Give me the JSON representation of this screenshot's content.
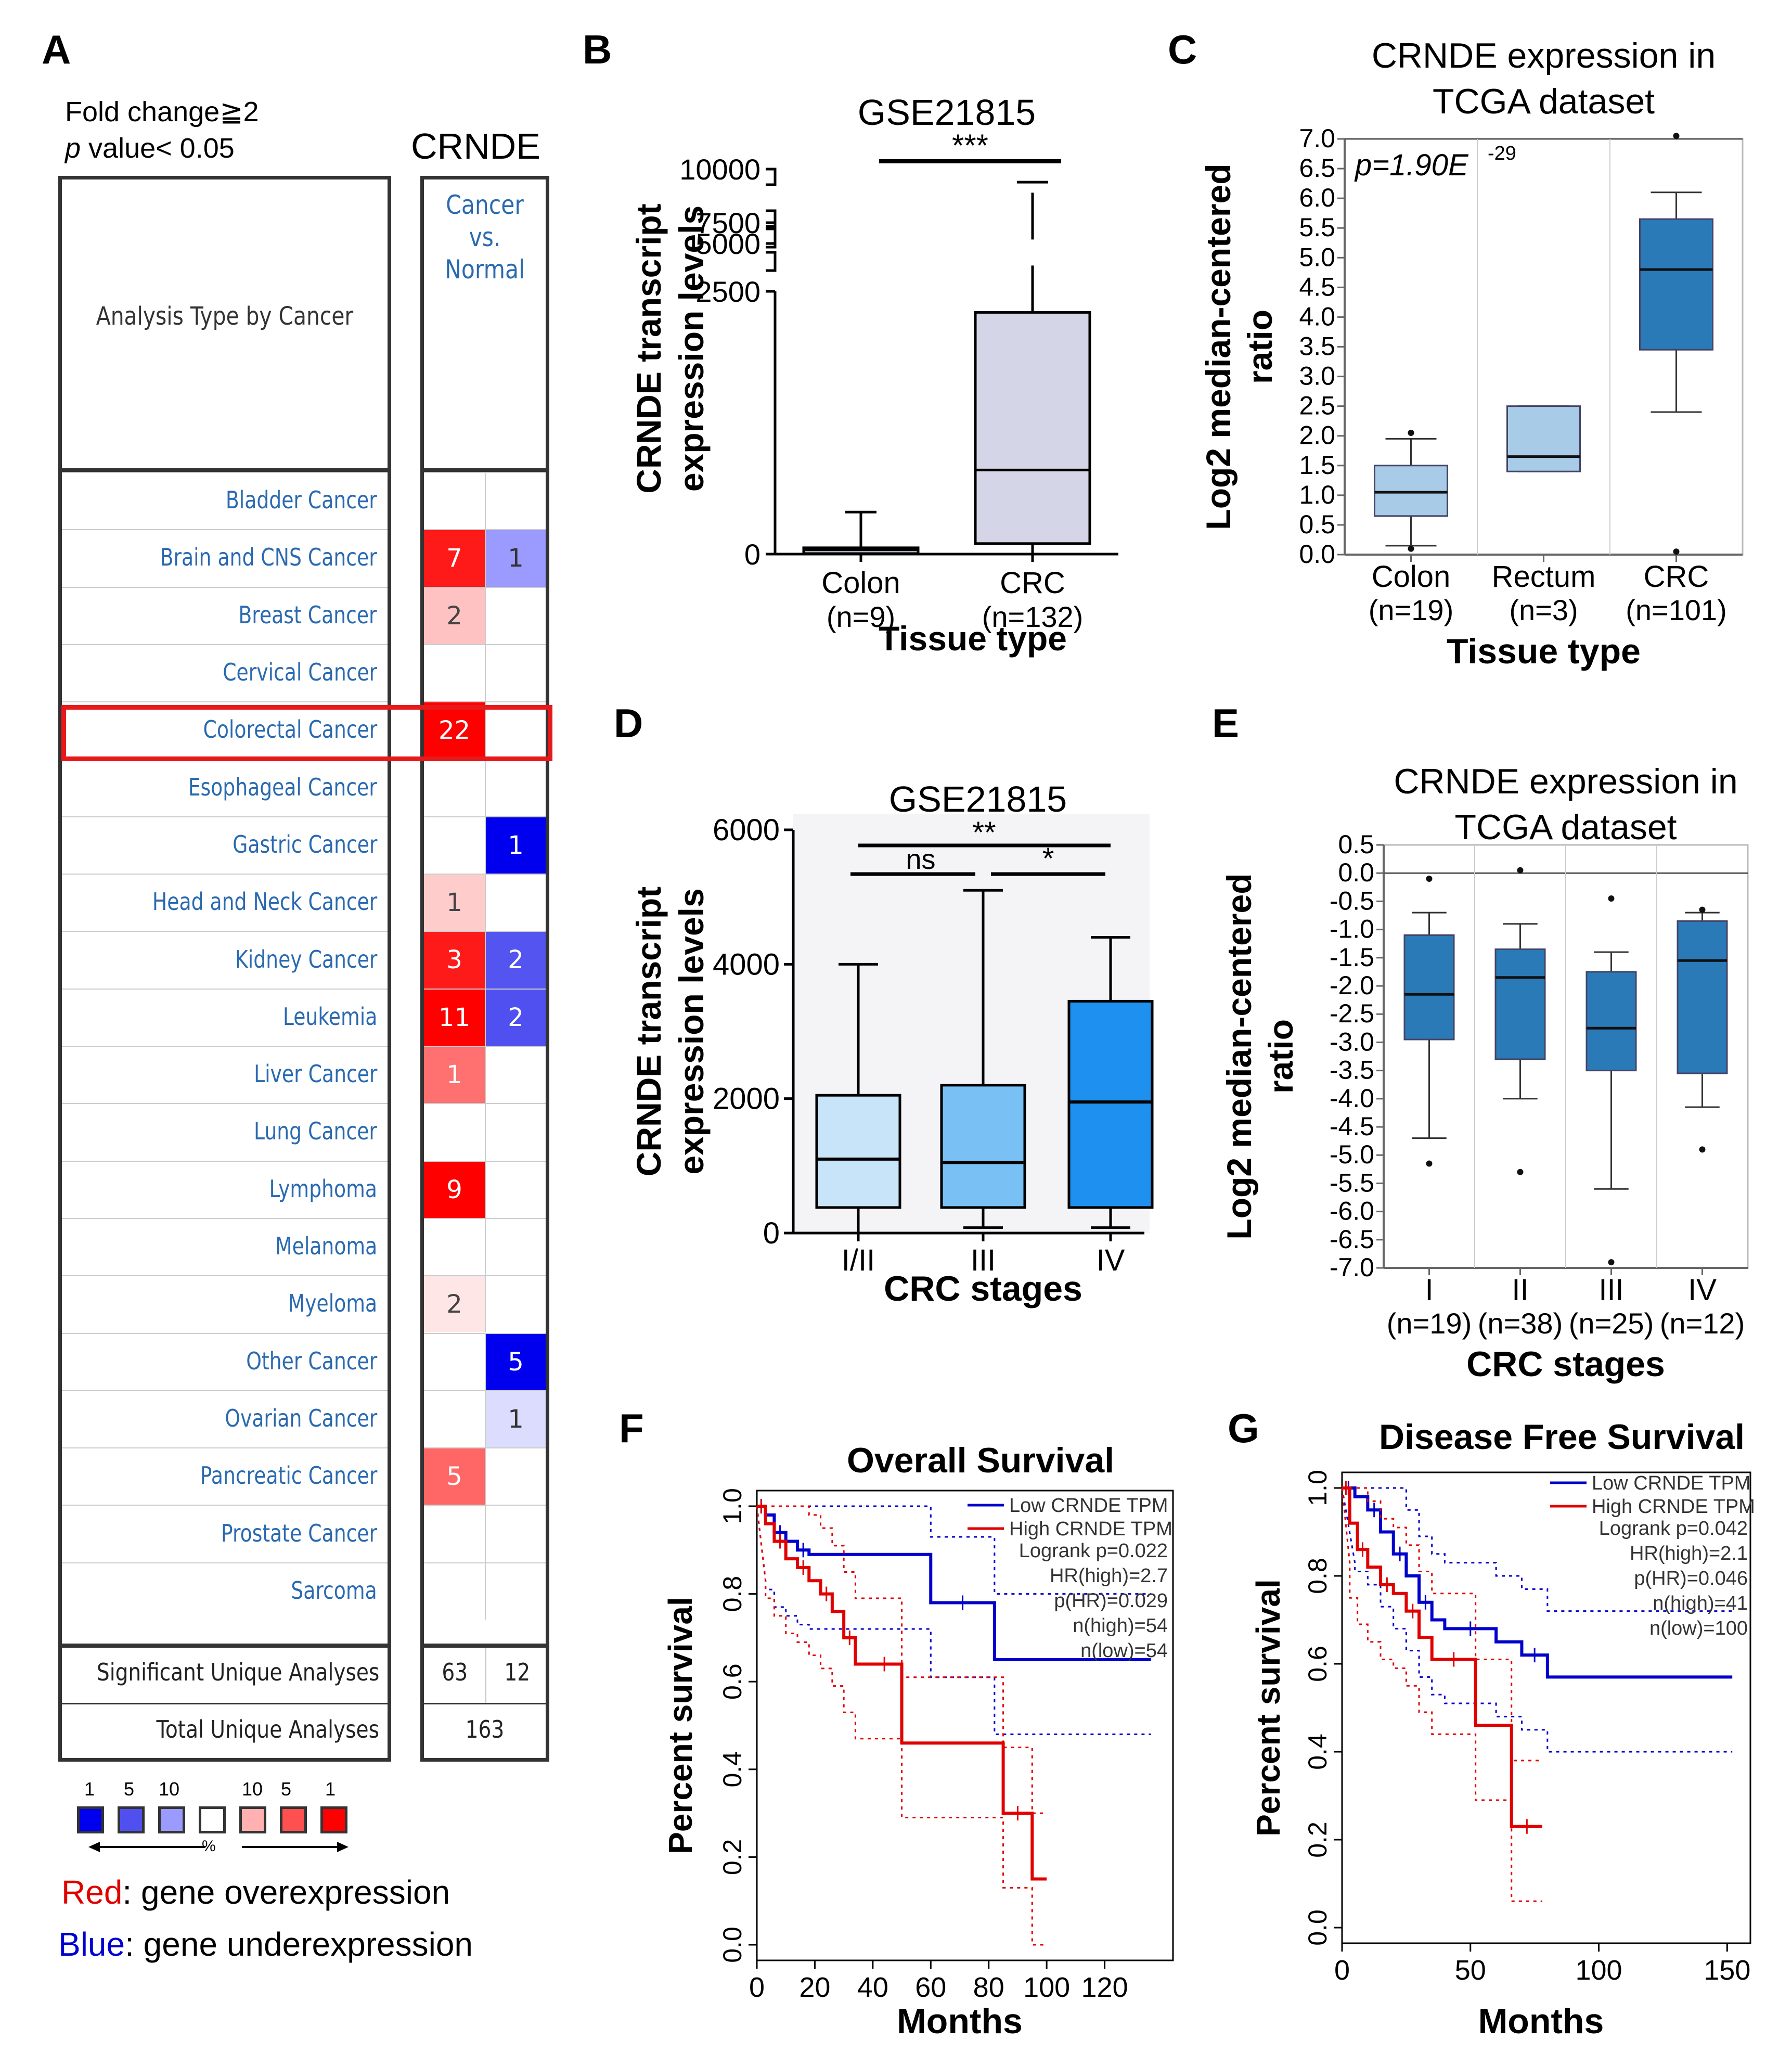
{
  "panel_labels": {
    "a": "A",
    "b": "B",
    "c": "C",
    "d": "D",
    "e": "E",
    "f": "F",
    "g": "G"
  },
  "panelA": {
    "criteria_line1": "Fold change≧2",
    "criteria_line2_p": "p",
    "criteria_line2_rest": " value< 0.05",
    "gene": "CRNDE",
    "column_header_1": "Cancer",
    "column_header_2": "vs.",
    "column_header_3": "Normal",
    "row_header": "Analysis Type by Cancer",
    "highlight_color": "#e8191a",
    "rows": [
      {
        "name": "Bladder Cancer",
        "over": "",
        "under": "",
        "over_color": "#ffffff",
        "under_color": "#ffffff"
      },
      {
        "name": "Brain and CNS Cancer",
        "over": "7",
        "under": "1",
        "over_color": "#ff1a1a",
        "under_color": "#9a9aff"
      },
      {
        "name": "Breast Cancer",
        "over": "2",
        "under": "",
        "over_color": "#ffc2c2",
        "under_color": "#ffffff"
      },
      {
        "name": "Cervical Cancer",
        "over": "",
        "under": "",
        "over_color": "#ffffff",
        "under_color": "#ffffff"
      },
      {
        "name": "Colorectal Cancer",
        "over": "22",
        "under": "",
        "over_color": "#ff0000",
        "under_color": "#ffffff"
      },
      {
        "name": "Esophageal Cancer",
        "over": "",
        "under": "",
        "over_color": "#ffffff",
        "under_color": "#ffffff"
      },
      {
        "name": "Gastric Cancer",
        "over": "",
        "under": "1",
        "over_color": "#ffffff",
        "under_color": "#0000ee"
      },
      {
        "name": "Head and Neck Cancer",
        "over": "1",
        "under": "",
        "over_color": "#ffcccc",
        "under_color": "#ffffff"
      },
      {
        "name": "Kidney Cancer",
        "over": "3",
        "under": "2",
        "over_color": "#ff1a1a",
        "under_color": "#5454f0"
      },
      {
        "name": "Leukemia",
        "over": "11",
        "under": "2",
        "over_color": "#ff0000",
        "under_color": "#5050f0"
      },
      {
        "name": "Liver Cancer",
        "over": "1",
        "under": "",
        "over_color": "#ff7070",
        "under_color": "#ffffff"
      },
      {
        "name": "Lung Cancer",
        "over": "",
        "under": "",
        "over_color": "#ffffff",
        "under_color": "#ffffff"
      },
      {
        "name": "Lymphoma",
        "over": "9",
        "under": "",
        "over_color": "#ff0000",
        "under_color": "#ffffff"
      },
      {
        "name": "Melanoma",
        "over": "",
        "under": "",
        "over_color": "#ffffff",
        "under_color": "#ffffff"
      },
      {
        "name": "Myeloma",
        "over": "2",
        "under": "",
        "over_color": "#ffe6e6",
        "under_color": "#ffffff"
      },
      {
        "name": "Other Cancer",
        "over": "",
        "under": "5",
        "over_color": "#ffffff",
        "under_color": "#0000ee"
      },
      {
        "name": "Ovarian Cancer",
        "over": "",
        "under": "1",
        "over_color": "#ffffff",
        "under_color": "#dcdcff"
      },
      {
        "name": "Pancreatic Cancer",
        "over": "5",
        "under": "",
        "over_color": "#ff6666",
        "under_color": "#ffffff"
      },
      {
        "name": "Prostate Cancer",
        "over": "",
        "under": "",
        "over_color": "#ffffff",
        "under_color": "#ffffff"
      },
      {
        "name": "Sarcoma",
        "over": "",
        "under": "",
        "over_color": "#ffffff",
        "under_color": "#ffffff"
      }
    ],
    "sig_label": "Significant Unique Analyses",
    "sig_over": "63",
    "sig_under": "12",
    "total_label": "Total Unique Analyses",
    "total": "163",
    "scale_numbers": [
      "1",
      "5",
      "10",
      "10",
      "5",
      "1"
    ],
    "scale_colors": [
      "#0000ee",
      "#5050f0",
      "#9a9aff",
      "#ffffff",
      "#ffb0b0",
      "#ff5050",
      "#ff0000"
    ],
    "percent_symbol": "%",
    "legend_red_word": "Red",
    "legend_red_rest": ": gene overexpression",
    "legend_blue_word": "Blue",
    "legend_blue_rest": ": gene underexpression"
  },
  "chart_data": [
    {
      "id": "B",
      "type": "box",
      "title": "GSE21815",
      "ylabel_1": "CRNDE transcript",
      "ylabel_2": "expression levels",
      "xlabel": "Tissue type",
      "yticks": [
        "0",
        "2500",
        "5000",
        "7500",
        "10000"
      ],
      "categories": [
        {
          "label": "Colon",
          "n": "(n=9)",
          "whisker_low": 0,
          "q1": 5,
          "median": 40,
          "q3": 60,
          "whisker_high": 400,
          "color": "#d5d5e8"
        },
        {
          "label": "CRC",
          "n": "(n=132)",
          "whisker_low": 0,
          "q1": 100,
          "median": 800,
          "q3": 2300,
          "whisker_high": 9200,
          "color": "#d5d5e8"
        }
      ],
      "significance": "***"
    },
    {
      "id": "C",
      "type": "box",
      "title_1": "CRNDE expression in",
      "title_2": "TCGA dataset",
      "ylabel_1": "Log2 median-centered",
      "ylabel_2": "ratio",
      "xlabel": "Tissue type",
      "pvalue": "p=1.90E",
      "pvalue_exp": "-29",
      "ylim": [
        0,
        7
      ],
      "yticks": [
        "0.0",
        "0.5",
        "1.0",
        "1.5",
        "2.0",
        "2.5",
        "3.0",
        "3.5",
        "4.0",
        "4.5",
        "5.0",
        "5.5",
        "6.0",
        "6.5",
        "7.0"
      ],
      "categories": [
        {
          "label": "Colon",
          "n": "(n=19)",
          "whisker_low": 0.15,
          "q1": 0.65,
          "median": 1.05,
          "q3": 1.5,
          "whisker_high": 1.95,
          "outlier_low": 0.1,
          "outlier_high": 2.05,
          "color": "#a8cce8"
        },
        {
          "label": "Rectum",
          "n": "(n=3)",
          "whisker_low": 1.4,
          "q1": 1.4,
          "median": 1.65,
          "q3": 2.5,
          "whisker_high": 2.5,
          "color": "#a8cce8"
        },
        {
          "label": "CRC",
          "n": "(n=101)",
          "whisker_low": 2.4,
          "q1": 3.45,
          "median": 4.8,
          "q3": 5.65,
          "whisker_high": 6.1,
          "outlier_low": 0.05,
          "outlier_high": 7.05,
          "color": "#2a7ab8"
        }
      ]
    },
    {
      "id": "D",
      "type": "box",
      "title": "GSE21815",
      "ylabel_1": "CRNDE transcript",
      "ylabel_2": "expression levels",
      "xlabel": "CRC stages",
      "ylim": [
        0,
        6000
      ],
      "yticks": [
        "0",
        "2000",
        "4000",
        "6000"
      ],
      "categories": [
        {
          "label": "I/II",
          "whisker_low": 0,
          "q1": 380,
          "median": 1100,
          "q3": 2050,
          "whisker_high": 4000,
          "color": "#c8e4f8"
        },
        {
          "label": "III",
          "whisker_low": 80,
          "q1": 380,
          "median": 1050,
          "q3": 2200,
          "whisker_high": 5100,
          "color": "#79c0f5"
        },
        {
          "label": "IV",
          "whisker_low": 80,
          "q1": 380,
          "median": 1950,
          "q3": 3450,
          "whisker_high": 4400,
          "color": "#1e90f0"
        }
      ],
      "sig_top": "**",
      "sig_left": "ns",
      "sig_right": "*"
    },
    {
      "id": "E",
      "type": "box",
      "title_1": "CRNDE expression in",
      "title_2": "TCGA dataset",
      "ylabel_1": "Log2 median-centered",
      "ylabel_2": "ratio",
      "xlabel": "CRC stages",
      "ylim": [
        -7,
        0.5
      ],
      "yticks": [
        "0.5",
        "0.0",
        "-0.5",
        "-1.0",
        "-1.5",
        "-2.0",
        "-2.5",
        "-3.0",
        "-3.5",
        "-4.0",
        "-4.5",
        "-5.0",
        "-5.5",
        "-6.0",
        "-6.5",
        "-7.0"
      ],
      "categories": [
        {
          "label": "I",
          "n": "(n=19)",
          "whisker_low": -4.7,
          "q1": -2.95,
          "median": -2.15,
          "q3": -1.1,
          "whisker_high": -0.7,
          "outlier_low": -5.15,
          "outlier_high": -0.1,
          "color": "#2a7ab8"
        },
        {
          "label": "II",
          "n": "(n=38)",
          "whisker_low": -4.0,
          "q1": -3.3,
          "median": -1.85,
          "q3": -1.35,
          "whisker_high": -0.9,
          "outlier_low": -5.3,
          "outlier_high": 0.05,
          "color": "#2a7ab8"
        },
        {
          "label": "III",
          "n": "(n=25)",
          "whisker_low": -5.6,
          "q1": -3.5,
          "median": -2.75,
          "q3": -1.75,
          "whisker_high": -1.4,
          "outlier_low": -6.9,
          "outlier_high": -0.45,
          "color": "#2a7ab8"
        },
        {
          "label": "IV",
          "n": "(n=12)",
          "whisker_low": -4.15,
          "q1": -3.55,
          "median": -1.55,
          "q3": -0.85,
          "whisker_high": -0.7,
          "outlier_low": -4.9,
          "outlier_high": -0.65,
          "color": "#2a7ab8"
        }
      ]
    },
    {
      "id": "F",
      "type": "line",
      "title": "Overall Survival",
      "ylabel": "Percent survival",
      "xlabel": "Months",
      "xlim": [
        0,
        140
      ],
      "ylim": [
        0,
        1
      ],
      "xticks": [
        "0",
        "20",
        "40",
        "60",
        "80",
        "100",
        "120"
      ],
      "yticks": [
        "0.0",
        "0.2",
        "0.4",
        "0.6",
        "0.8",
        "1.0"
      ],
      "series": [
        {
          "name": "Low CRNDE TPM",
          "color": "#0000cc",
          "x": [
            0,
            3,
            6,
            10,
            14,
            18,
            60,
            82,
            136
          ],
          "y": [
            1.0,
            0.98,
            0.94,
            0.92,
            0.9,
            0.89,
            0.78,
            0.65,
            0.65
          ]
        },
        {
          "name": "High CRNDE TPM",
          "color": "#e00000",
          "x": [
            0,
            3,
            6,
            10,
            14,
            18,
            22,
            26,
            30,
            34,
            38,
            50,
            85,
            95,
            100
          ],
          "y": [
            1.0,
            0.96,
            0.92,
            0.88,
            0.86,
            0.83,
            0.8,
            0.76,
            0.7,
            0.64,
            0.64,
            0.46,
            0.3,
            0.15,
            0.15
          ]
        }
      ],
      "stats": [
        "Logrank p=0.022",
        "HR(high)=2.7",
        "p(HR)=0.029",
        "n(high)=54",
        "n(low)=54"
      ]
    },
    {
      "id": "G",
      "type": "line",
      "title": "Disease Free Survival",
      "ylabel": "Percent survival",
      "xlabel": "Months",
      "xlim": [
        0,
        155
      ],
      "ylim": [
        0,
        1
      ],
      "xticks": [
        "0",
        "50",
        "100",
        "150"
      ],
      "yticks": [
        "0.0",
        "0.2",
        "0.4",
        "0.6",
        "0.8",
        "1.0"
      ],
      "series": [
        {
          "name": "Low CRNDE TPM",
          "color": "#0000cc",
          "x": [
            0,
            5,
            10,
            15,
            20,
            25,
            30,
            35,
            40,
            60,
            70,
            80,
            152
          ],
          "y": [
            1.0,
            0.98,
            0.95,
            0.9,
            0.85,
            0.8,
            0.74,
            0.7,
            0.68,
            0.65,
            0.62,
            0.57,
            0.57
          ]
        },
        {
          "name": "High CRNDE TPM",
          "color": "#e00000",
          "x": [
            0,
            3,
            6,
            10,
            15,
            20,
            25,
            30,
            35,
            52,
            66,
            78
          ],
          "y": [
            1.0,
            0.92,
            0.86,
            0.82,
            0.78,
            0.76,
            0.72,
            0.66,
            0.61,
            0.46,
            0.23,
            0.23
          ]
        }
      ],
      "stats": [
        "Logrank p=0.042",
        "HR(high)=2.1",
        "p(HR)=0.046",
        "n(high)=41",
        "n(low)=100"
      ]
    }
  ]
}
